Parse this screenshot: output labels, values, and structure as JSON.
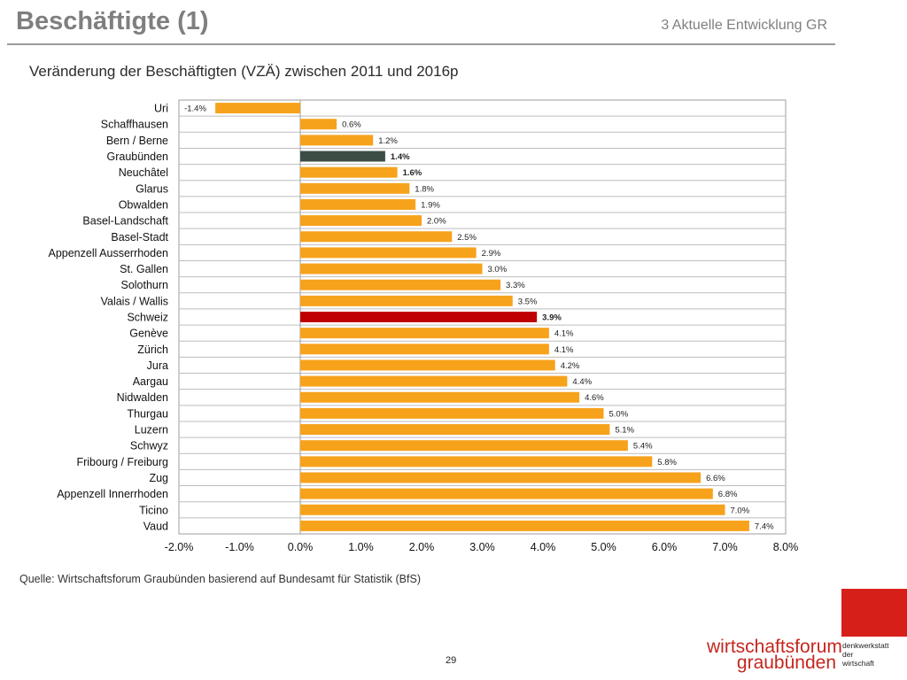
{
  "header": {
    "title": "Beschäftigte (1)",
    "section": "3 Aktuelle Entwicklung GR"
  },
  "chart_data": {
    "type": "bar",
    "orientation": "horizontal",
    "title": "Veränderung der Beschäftigten (VZÄ) zwischen 2011 und 2016p",
    "categories": [
      "Uri",
      "Schaffhausen",
      "Bern / Berne",
      "Graubünden",
      "Neuchâtel",
      "Glarus",
      "Obwalden",
      "Basel-Landschaft",
      "Basel-Stadt",
      "Appenzell Ausserrhoden",
      "St. Gallen",
      "Solothurn",
      "Valais / Wallis",
      "Schweiz",
      "Genève",
      "Zürich",
      "Jura",
      "Aargau",
      "Nidwalden",
      "Thurgau",
      "Luzern",
      "Schwyz",
      "Fribourg / Freiburg",
      "Zug",
      "Appenzell Innerrhoden",
      "Ticino",
      "Vaud"
    ],
    "values": [
      -1.4,
      0.6,
      1.2,
      1.4,
      1.6,
      1.8,
      1.9,
      2.0,
      2.5,
      2.9,
      3.0,
      3.3,
      3.5,
      3.9,
      4.1,
      4.1,
      4.2,
      4.4,
      4.6,
      5.0,
      5.1,
      5.4,
      5.8,
      6.6,
      6.8,
      7.0,
      7.4
    ],
    "value_labels": [
      "-1.4%",
      "0.6%",
      "1.2%",
      "1.4%",
      "1.6%",
      "1.8%",
      "1.9%",
      "2.0%",
      "2.5%",
      "2.9%",
      "3.0%",
      "3.3%",
      "3.5%",
      "3.9%",
      "4.1%",
      "4.1%",
      "4.2%",
      "4.4%",
      "4.6%",
      "5.0%",
      "5.1%",
      "5.4%",
      "5.8%",
      "6.6%",
      "6.8%",
      "7.0%",
      "7.4%"
    ],
    "xlim": [
      -2.0,
      8.0
    ],
    "xticks": [
      -2.0,
      -1.0,
      0.0,
      1.0,
      2.0,
      3.0,
      4.0,
      5.0,
      6.0,
      7.0,
      8.0
    ],
    "xtick_labels": [
      "-2.0%",
      "-1.0%",
      "0.0%",
      "1.0%",
      "2.0%",
      "3.0%",
      "4.0%",
      "5.0%",
      "6.0%",
      "7.0%",
      "8.0%"
    ],
    "grid": "horizontal gridlines",
    "colors": {
      "default": "#f7a21b",
      "Graubünden": "#3c4d45",
      "Schweiz": "#c00000"
    },
    "bold_labels": [
      "Graubünden",
      "Neuchâtel",
      "Schweiz"
    ]
  },
  "source": "Quelle: Wirtschaftsforum Graubünden basierend auf Bundesamt für Statistik (BfS)",
  "page_number": "29",
  "logo": {
    "line1": "wirtschaftsforum",
    "line2": "graubünden",
    "tagline": [
      "denkwerkstatt",
      "der",
      "wirtschaft"
    ]
  }
}
